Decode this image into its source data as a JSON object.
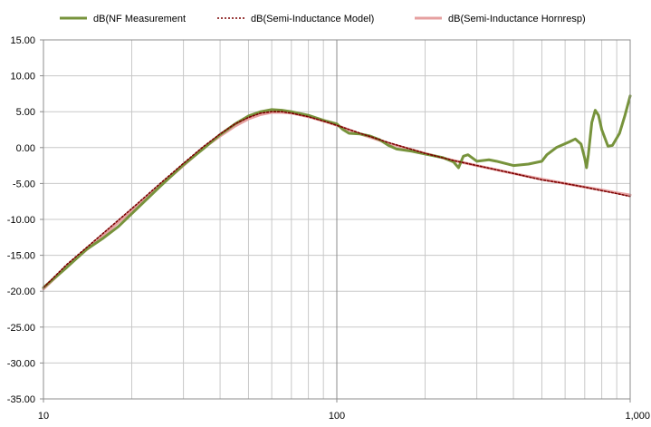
{
  "chart_data": {
    "type": "line",
    "title": "",
    "xlabel": "",
    "ylabel": "",
    "x_scale": "log",
    "xlim": [
      10,
      1000
    ],
    "ylim": [
      -35,
      15
    ],
    "grid": true,
    "legend_placement": "top",
    "x_tick_labels": [
      {
        "value": 10,
        "label": "10"
      },
      {
        "value": 100,
        "label": "100"
      },
      {
        "value": 1000,
        "label": "1,000"
      }
    ],
    "y_tick_labels": [
      {
        "value": 15,
        "label": "15.00"
      },
      {
        "value": 10,
        "label": "10.00"
      },
      {
        "value": 5,
        "label": "5.00"
      },
      {
        "value": 0,
        "label": "0.00"
      },
      {
        "value": -5,
        "label": "-5.00"
      },
      {
        "value": -10,
        "label": "-10.00"
      },
      {
        "value": -15,
        "label": "-15.00"
      },
      {
        "value": -20,
        "label": "-20.00"
      },
      {
        "value": -25,
        "label": "-25.00"
      },
      {
        "value": -30,
        "label": "-30.00"
      },
      {
        "value": -35,
        "label": "-35.00"
      }
    ],
    "series": [
      {
        "name": "dB(NF Measurement",
        "color": "#77933C",
        "style": "solid-thick",
        "points": [
          [
            10,
            -19.5
          ],
          [
            12,
            -16.7
          ],
          [
            14,
            -14.2
          ],
          [
            16,
            -12.6
          ],
          [
            18,
            -11.0
          ],
          [
            20,
            -9.2
          ],
          [
            25,
            -5.4
          ],
          [
            30,
            -2.4
          ],
          [
            35,
            -0.2
          ],
          [
            40,
            1.8
          ],
          [
            45,
            3.3
          ],
          [
            50,
            4.4
          ],
          [
            55,
            5.0
          ],
          [
            60,
            5.3
          ],
          [
            65,
            5.2
          ],
          [
            70,
            5.0
          ],
          [
            80,
            4.5
          ],
          [
            90,
            3.8
          ],
          [
            100,
            3.3
          ],
          [
            105,
            2.5
          ],
          [
            110,
            2.0
          ],
          [
            120,
            1.9
          ],
          [
            130,
            1.6
          ],
          [
            140,
            1.1
          ],
          [
            150,
            0.3
          ],
          [
            160,
            -0.2
          ],
          [
            180,
            -0.5
          ],
          [
            200,
            -0.9
          ],
          [
            230,
            -1.4
          ],
          [
            250,
            -2.0
          ],
          [
            260,
            -2.8
          ],
          [
            270,
            -1.2
          ],
          [
            280,
            -1.0
          ],
          [
            300,
            -1.9
          ],
          [
            330,
            -1.7
          ],
          [
            350,
            -1.9
          ],
          [
            400,
            -2.5
          ],
          [
            450,
            -2.3
          ],
          [
            500,
            -1.9
          ],
          [
            520,
            -1.0
          ],
          [
            560,
            0.0
          ],
          [
            620,
            0.8
          ],
          [
            650,
            1.2
          ],
          [
            680,
            0.5
          ],
          [
            700,
            -1.5
          ],
          [
            710,
            -2.8
          ],
          [
            720,
            -1.0
          ],
          [
            740,
            3.5
          ],
          [
            760,
            5.2
          ],
          [
            780,
            4.5
          ],
          [
            800,
            2.5
          ],
          [
            840,
            0.2
          ],
          [
            870,
            0.3
          ],
          [
            920,
            2.0
          ],
          [
            960,
            4.5
          ],
          [
            1000,
            7.2
          ]
        ]
      },
      {
        "name": "dB(Semi-Inductance Model)",
        "color": "#7B0000",
        "style": "dotted",
        "points": [
          [
            10,
            -19.5
          ],
          [
            12,
            -16.3
          ],
          [
            15,
            -12.9
          ],
          [
            20,
            -8.5
          ],
          [
            25,
            -5.0
          ],
          [
            30,
            -2.2
          ],
          [
            35,
            0.1
          ],
          [
            40,
            1.9
          ],
          [
            45,
            3.3
          ],
          [
            50,
            4.2
          ],
          [
            55,
            4.8
          ],
          [
            60,
            5.0
          ],
          [
            65,
            5.0
          ],
          [
            70,
            4.8
          ],
          [
            80,
            4.3
          ],
          [
            90,
            3.7
          ],
          [
            100,
            3.1
          ],
          [
            120,
            2.0
          ],
          [
            150,
            0.7
          ],
          [
            200,
            -0.8
          ],
          [
            250,
            -1.8
          ],
          [
            300,
            -2.5
          ],
          [
            400,
            -3.6
          ],
          [
            500,
            -4.5
          ],
          [
            600,
            -5.0
          ],
          [
            700,
            -5.5
          ],
          [
            800,
            -6.0
          ],
          [
            900,
            -6.4
          ],
          [
            1000,
            -6.8
          ]
        ]
      },
      {
        "name": "dB(Semi-Inductance Hornresp)",
        "color": "#E6A0A0",
        "style": "solid",
        "points": [
          [
            10,
            -19.7
          ],
          [
            12,
            -16.6
          ],
          [
            15,
            -13.2
          ],
          [
            20,
            -8.8
          ],
          [
            25,
            -5.3
          ],
          [
            30,
            -2.5
          ],
          [
            35,
            -0.1
          ],
          [
            40,
            1.6
          ],
          [
            45,
            3.0
          ],
          [
            50,
            4.0
          ],
          [
            55,
            4.6
          ],
          [
            60,
            4.9
          ],
          [
            65,
            4.9
          ],
          [
            70,
            4.8
          ],
          [
            80,
            4.3
          ],
          [
            90,
            3.7
          ],
          [
            100,
            3.1
          ],
          [
            120,
            1.9
          ],
          [
            150,
            0.6
          ],
          [
            200,
            -0.8
          ],
          [
            250,
            -1.8
          ],
          [
            300,
            -2.5
          ],
          [
            400,
            -3.6
          ],
          [
            500,
            -4.4
          ],
          [
            600,
            -5.0
          ],
          [
            700,
            -5.5
          ],
          [
            800,
            -5.9
          ],
          [
            900,
            -6.3
          ],
          [
            1000,
            -6.6
          ]
        ]
      }
    ]
  }
}
